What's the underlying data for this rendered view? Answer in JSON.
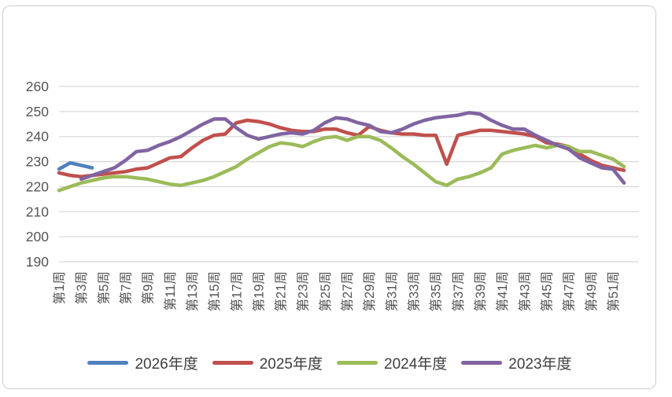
{
  "chart_data": {
    "type": "line",
    "title": "",
    "x_unit": "week",
    "weeks": 52,
    "x_tick_labels": [
      "第1周",
      "第3周",
      "第5周",
      "第7周",
      "第9周",
      "第11周",
      "第13周",
      "第15周",
      "第17周",
      "第19周",
      "第21周",
      "第23周",
      "第25周",
      "第27周",
      "第29周",
      "第31周",
      "第33周",
      "第35周",
      "第37周",
      "第39周",
      "第41周",
      "第43周",
      "第45周",
      "第47周",
      "第49周",
      "第51周"
    ],
    "y_ticks": [
      190,
      200,
      210,
      220,
      230,
      240,
      250,
      260
    ],
    "ylim": [
      190,
      260
    ],
    "grid": "horizontal",
    "gridline_color": "#d9d9d9",
    "legend_position": "bottom",
    "series": [
      {
        "name": "2026年度",
        "color": "#4F81BD",
        "values": [
          227,
          229.5,
          228.5,
          227.5,
          null,
          null,
          null,
          null,
          null,
          null,
          null,
          null,
          null,
          null,
          null,
          null,
          null,
          null,
          null,
          null,
          null,
          null,
          null,
          null,
          null,
          null,
          null,
          null,
          null,
          null,
          null,
          null,
          null,
          null,
          null,
          null,
          null,
          null,
          null,
          null,
          null,
          null,
          null,
          null,
          null,
          null,
          null,
          null,
          null,
          null,
          null,
          null
        ]
      },
      {
        "name": "2025年度",
        "color": "#C0504D",
        "values": [
          225.5,
          224.5,
          224,
          224.5,
          225,
          225.5,
          226,
          227,
          227.5,
          229.5,
          231.5,
          232,
          235.5,
          238.5,
          240.5,
          241,
          245.5,
          246.5,
          246,
          245,
          243.5,
          242.5,
          242,
          242,
          243,
          243,
          241.5,
          240.5,
          244,
          242.5,
          241.5,
          241,
          241,
          240.5,
          240.5,
          229,
          240.5,
          241.5,
          242.5,
          242.5,
          242,
          241.5,
          241,
          240,
          237.5,
          237,
          236,
          233,
          230.5,
          228.5,
          227.5,
          226.5
        ]
      },
      {
        "name": "2024年度",
        "color": "#9BBB59",
        "values": [
          218.5,
          220,
          221.5,
          222.5,
          223.5,
          224,
          224,
          223.5,
          223,
          222,
          221,
          220.5,
          221.5,
          222.5,
          224,
          226,
          228,
          231,
          233.5,
          236,
          237.5,
          237,
          236,
          238,
          239.5,
          240,
          238.5,
          240,
          240,
          238.5,
          235.5,
          232,
          229,
          225.5,
          222,
          220.5,
          223,
          224,
          225.5,
          227.5,
          233,
          234.5,
          235.5,
          236.5,
          235.5,
          236.5,
          236,
          234,
          234,
          232.5,
          231,
          228
        ]
      },
      {
        "name": "2023年度",
        "color": "#8064A2",
        "values": [
          null,
          null,
          223,
          224.5,
          226,
          227.5,
          230.5,
          234,
          234.5,
          236.5,
          238,
          240,
          242.5,
          245,
          247,
          247,
          243.5,
          240.5,
          239,
          240,
          241,
          241.5,
          241,
          242.5,
          245.5,
          247.5,
          247,
          245.5,
          244.5,
          242,
          241.5,
          243,
          245,
          246.5,
          247.5,
          248,
          248.5,
          249.5,
          249,
          246.5,
          244.5,
          243,
          243,
          240.5,
          238.5,
          236.5,
          235,
          231.5,
          229.5,
          227.5,
          227,
          221.5
        ]
      }
    ]
  }
}
